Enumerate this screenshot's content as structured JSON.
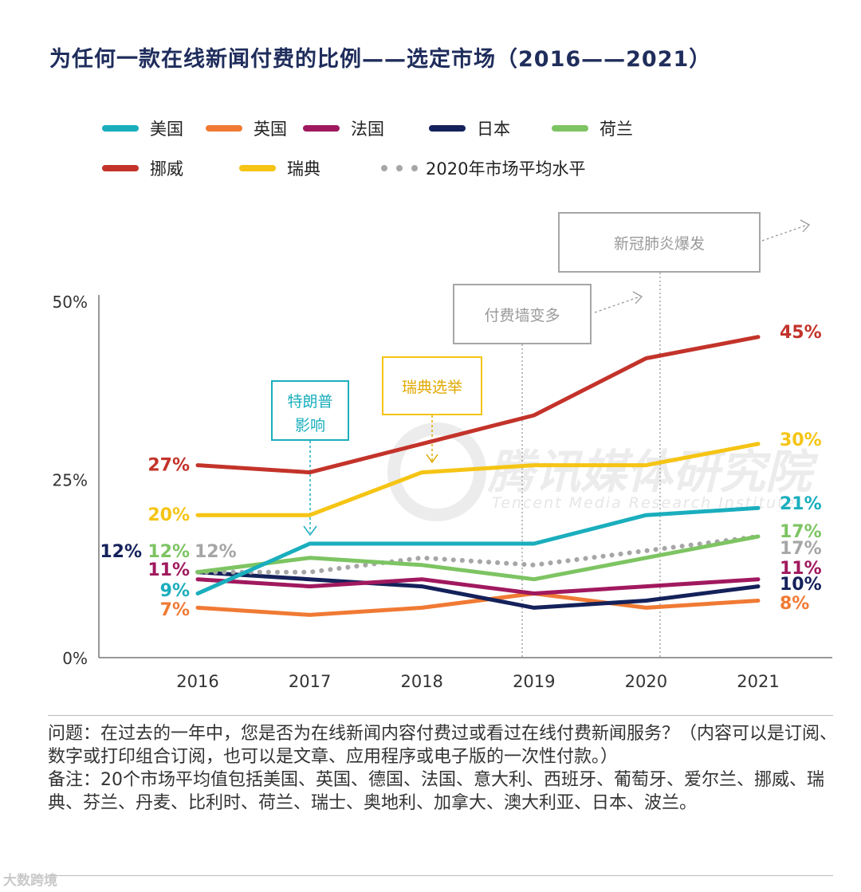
{
  "title": "为任何一款在线新闻付费的比例——选定市场（2016——2021）",
  "legend": [
    {
      "name": "美国",
      "color": "#1aaebd",
      "style": "solid"
    },
    {
      "name": "英国",
      "color": "#f07a34",
      "style": "solid"
    },
    {
      "name": "法国",
      "color": "#a0195e",
      "style": "solid"
    },
    {
      "name": "日本",
      "color": "#14215a",
      "style": "solid"
    },
    {
      "name": "荷兰",
      "color": "#7dc462",
      "style": "solid"
    },
    {
      "name": "挪威",
      "color": "#c3332a",
      "style": "solid"
    },
    {
      "name": "瑞典",
      "color": "#f5c414",
      "style": "solid"
    },
    {
      "name": "2020年市场平均水平",
      "color": "#a6a6a6",
      "style": "dotted"
    }
  ],
  "chart_data": {
    "type": "line",
    "x": [
      "2016",
      "2017",
      "2018",
      "2019",
      "2020",
      "2021"
    ],
    "y_ticks": [
      "0%",
      "25%",
      "50%"
    ],
    "ylim": [
      0,
      50
    ],
    "series": [
      {
        "name": "挪威",
        "color": "#c3332a",
        "values": [
          27,
          26,
          30,
          34,
          42,
          45
        ],
        "start_label": "27%",
        "end_label": "45%"
      },
      {
        "name": "瑞典",
        "color": "#f5c414",
        "values": [
          20,
          20,
          26,
          27,
          27,
          30
        ],
        "start_label": "20%",
        "end_label": "30%"
      },
      {
        "name": "美国",
        "color": "#1aaebd",
        "values": [
          9,
          16,
          16,
          16,
          20,
          21
        ],
        "start_label": "9%",
        "end_label": "21%"
      },
      {
        "name": "荷兰",
        "color": "#7dc462",
        "values": [
          12,
          14,
          13,
          11,
          14,
          17
        ],
        "start_label": "12%",
        "end_label": "17%"
      },
      {
        "name": "2020年市场平均水平",
        "color": "#a6a6a6",
        "dotted": true,
        "values": [
          12,
          12,
          14,
          13,
          15,
          17
        ],
        "start_label": "12%",
        "end_label": "17%"
      },
      {
        "name": "法国",
        "color": "#a0195e",
        "values": [
          11,
          10,
          11,
          9,
          10,
          11
        ],
        "start_label": "11%",
        "end_label": "11%"
      },
      {
        "name": "日本",
        "color": "#14215a",
        "values": [
          12,
          11,
          10,
          7,
          8,
          10
        ],
        "start_label": "12%",
        "end_label": "10%"
      },
      {
        "name": "英国",
        "color": "#f07a34",
        "values": [
          7,
          6,
          7,
          9,
          7,
          8
        ],
        "start_label": "7%",
        "end_label": "8%"
      }
    ],
    "annotations": [
      {
        "text_lines": [
          "特朗普",
          "影响"
        ],
        "color": "#1aaebd"
      },
      {
        "text_lines": [
          "瑞典选举"
        ],
        "color": "#f5c414"
      },
      {
        "text_lines": [
          "付费墙变多"
        ],
        "color": "#9a9a9a"
      },
      {
        "text_lines": [
          "新冠肺炎爆发"
        ],
        "color": "#9a9a9a"
      }
    ],
    "watermark": {
      "cn": "腾讯媒体研究院",
      "en": "Tencent Media Research Institute"
    }
  },
  "footer": {
    "question": "问题：在过去的一年中，您是否为在线新闻内容付费过或看过在线付费新闻服务？（内容可以是订阅、数字或打印组合订阅，也可以是文章、应用程序或电子版的一次性付款。）",
    "note": "备注：20个市场平均值包括美国、英国、德国、法国、意大利、西班牙、葡萄牙、爱尔兰、挪威、瑞典、芬兰、丹麦、比利时、荷兰、瑞士、奥地利、加拿大、澳大利亚、日本、波兰。"
  },
  "source_mark": "大数跨境"
}
